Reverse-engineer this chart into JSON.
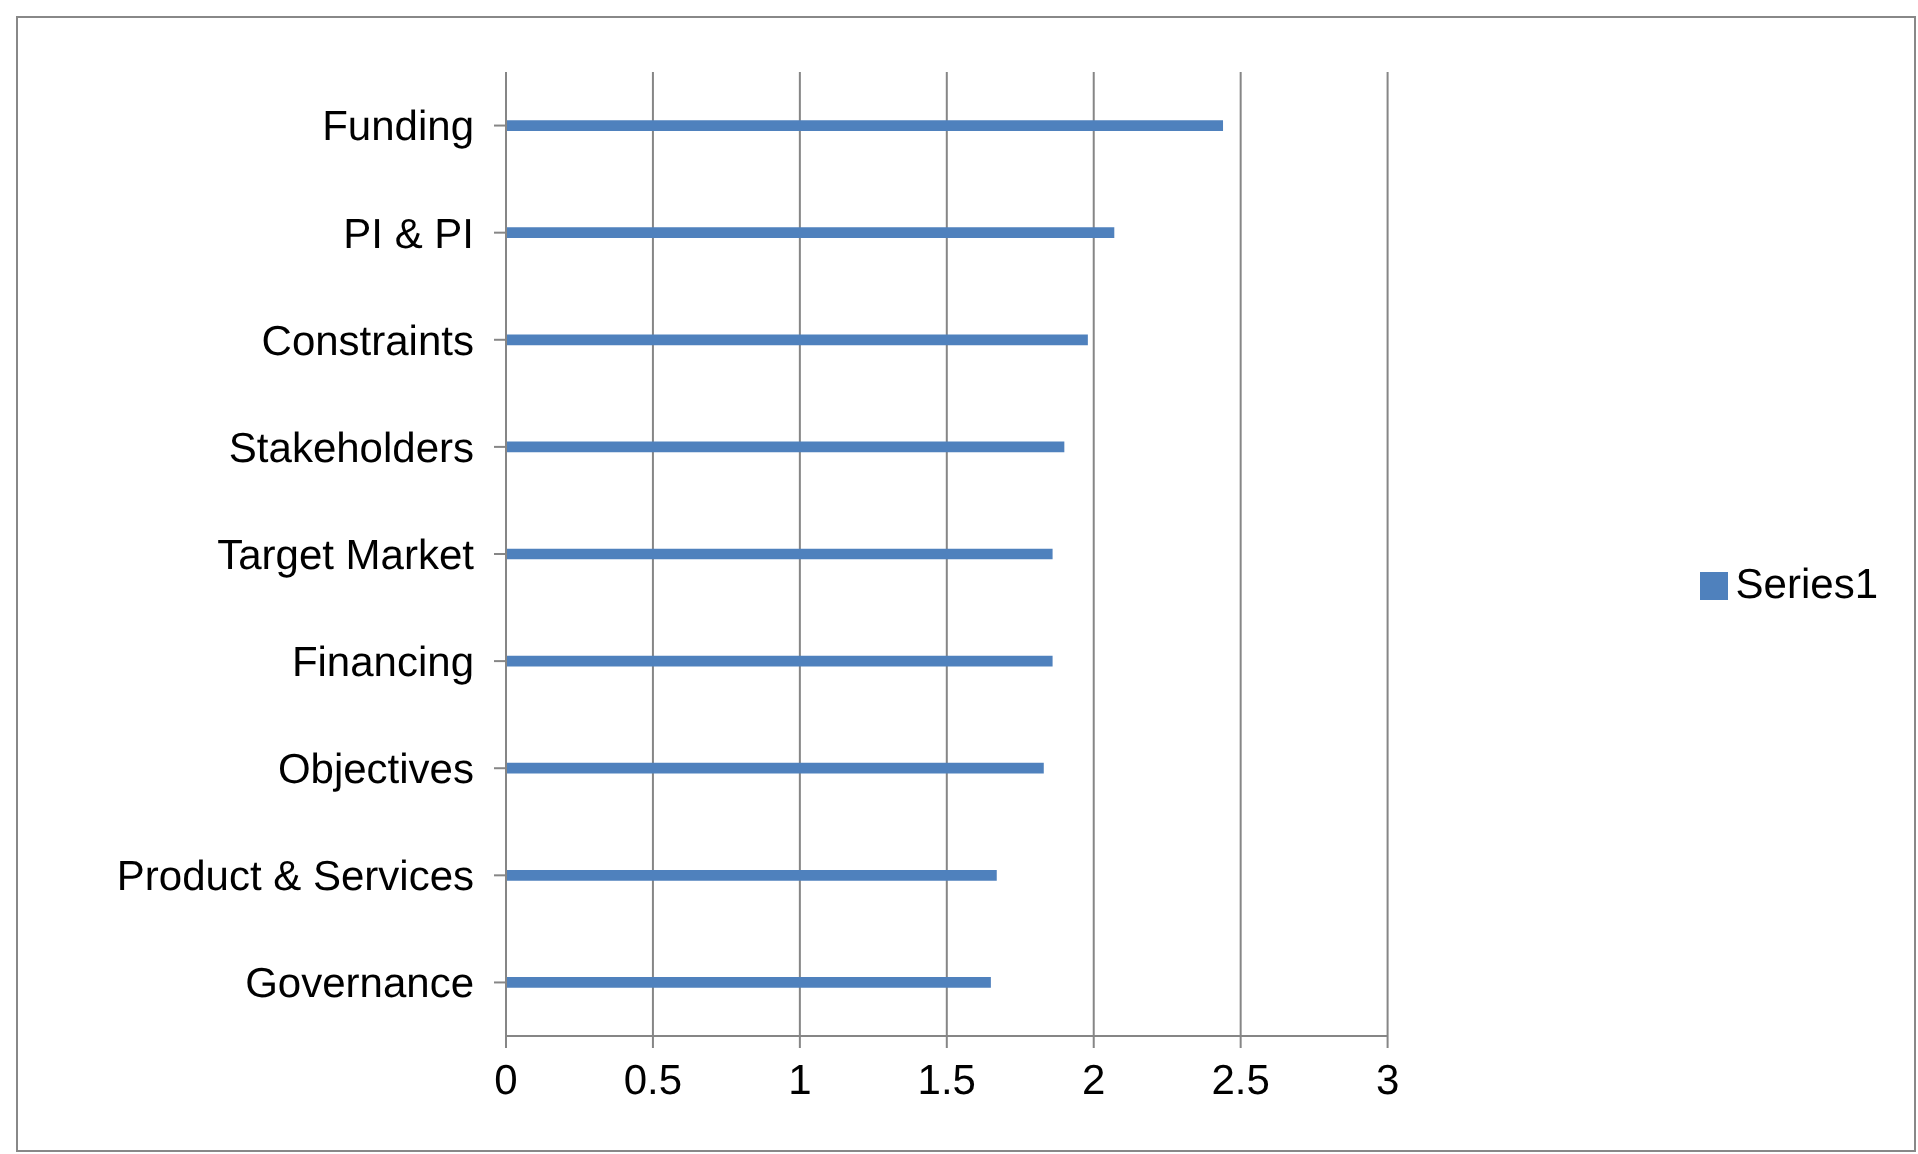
{
  "chart_data": {
    "type": "bar",
    "orientation": "horizontal",
    "categories": [
      "Funding",
      "PI & PI",
      "Constraints",
      "Stakeholders",
      "Target Market",
      "Financing",
      "Objectives",
      "Product & Services",
      "Governance"
    ],
    "series": [
      {
        "name": "Series1",
        "color": "#4f81bd",
        "values": [
          2.44,
          2.07,
          1.98,
          1.9,
          1.86,
          1.86,
          1.83,
          1.67,
          1.65
        ]
      }
    ],
    "xlim": [
      0,
      3
    ],
    "xticks": [
      0,
      0.5,
      1,
      1.5,
      2,
      2.5,
      3
    ],
    "grid": "x",
    "legend": "right"
  }
}
